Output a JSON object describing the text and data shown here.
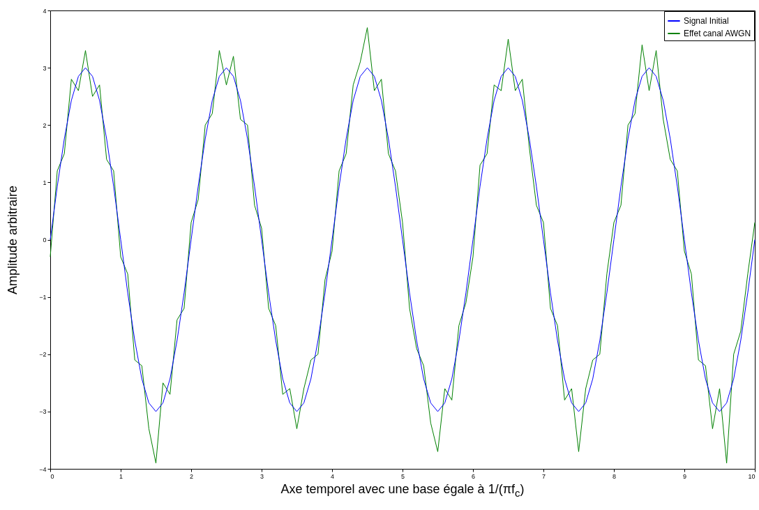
{
  "chart_data": {
    "type": "line",
    "xlabel": "Axe temporel avec une base égale à 1/(πf$_{c}$)",
    "ylabel": "Amplitude arbitraire",
    "x": [
      0,
      0.1,
      0.2,
      0.3,
      0.4,
      0.5,
      0.6,
      0.7,
      0.8,
      0.9,
      1,
      1.1,
      1.2,
      1.3,
      1.4,
      1.5,
      1.6,
      1.7,
      1.8,
      1.9,
      2,
      2.1,
      2.2,
      2.3,
      2.4,
      2.5,
      2.6,
      2.7,
      2.8,
      2.9,
      3,
      3.1,
      3.2,
      3.3,
      3.4,
      3.5,
      3.6,
      3.7,
      3.8,
      3.9,
      4,
      4.1,
      4.2,
      4.3,
      4.4,
      4.5,
      4.6,
      4.7,
      4.8,
      4.9,
      5,
      5.1,
      5.2,
      5.3,
      5.4,
      5.5,
      5.6,
      5.7,
      5.8,
      5.9,
      6,
      6.1,
      6.2,
      6.3,
      6.4,
      6.5,
      6.6,
      6.7,
      6.8,
      6.9,
      7,
      7.1,
      7.2,
      7.3,
      7.4,
      7.5,
      7.6,
      7.7,
      7.8,
      7.9,
      8,
      8.1,
      8.2,
      8.3,
      8.4,
      8.5,
      8.6,
      8.7,
      8.8,
      8.9,
      9,
      9.1,
      9.2,
      9.3,
      9.4,
      9.5,
      9.6,
      9.7,
      9.8,
      9.9,
      10
    ],
    "series": [
      {
        "name": "Effet canal AWGN",
        "color": "#008000",
        "values": [
          -0.3,
          1.2,
          1.5,
          2.8,
          2.6,
          3.3,
          2.5,
          2.7,
          1.4,
          1.2,
          -0.3,
          -0.6,
          -2.1,
          -2.2,
          -3.3,
          -3.9,
          -2.5,
          -2.7,
          -1.4,
          -1.2,
          0.3,
          0.7,
          2.0,
          2.2,
          3.3,
          2.7,
          3.2,
          2.1,
          2.0,
          0.6,
          0.2,
          -1.2,
          -1.5,
          -2.7,
          -2.6,
          -3.3,
          -2.6,
          -2.1,
          -2.0,
          -0.7,
          -0.2,
          1.2,
          1.5,
          2.7,
          3.1,
          3.7,
          2.6,
          2.8,
          1.5,
          1.2,
          0.3,
          -1.2,
          -1.9,
          -2.2,
          -3.2,
          -3.7,
          -2.6,
          -2.8,
          -1.5,
          -1.1,
          -0.3,
          1.3,
          1.5,
          2.7,
          2.6,
          3.5,
          2.6,
          2.8,
          1.6,
          0.6,
          0.3,
          -1.2,
          -1.5,
          -2.8,
          -2.6,
          -3.7,
          -2.6,
          -2.1,
          -2.0,
          -0.6,
          0.3,
          0.6,
          2.0,
          2.2,
          3.4,
          2.6,
          3.3,
          2.1,
          1.4,
          1.2,
          -0.2,
          -0.6,
          -2.1,
          -2.2,
          -3.3,
          -2.6,
          -3.9,
          -2.0,
          -1.6,
          -0.6,
          0.3
        ]
      },
      {
        "name": "Signal Initial",
        "color": "#0000ff",
        "values": [
          0,
          0.93,
          1.76,
          2.43,
          2.85,
          3,
          2.85,
          2.43,
          1.76,
          0.93,
          0,
          -0.93,
          -1.76,
          -2.43,
          -2.85,
          -3,
          -2.85,
          -2.43,
          -1.76,
          -0.93,
          0,
          0.93,
          1.76,
          2.43,
          2.85,
          3,
          2.85,
          2.43,
          1.76,
          0.93,
          0,
          -0.93,
          -1.76,
          -2.43,
          -2.85,
          -3,
          -2.85,
          -2.43,
          -1.76,
          -0.93,
          0,
          0.93,
          1.76,
          2.43,
          2.85,
          3,
          2.85,
          2.43,
          1.76,
          0.93,
          0,
          -0.93,
          -1.76,
          -2.43,
          -2.85,
          -3,
          -2.85,
          -2.43,
          -1.76,
          -0.93,
          0,
          0.93,
          1.76,
          2.43,
          2.85,
          3,
          2.85,
          2.43,
          1.76,
          0.93,
          0,
          -0.93,
          -1.76,
          -2.43,
          -2.85,
          -3,
          -2.85,
          -2.43,
          -1.76,
          -0.93,
          0,
          0.93,
          1.76,
          2.43,
          2.85,
          3,
          2.85,
          2.43,
          1.76,
          0.93,
          0,
          -0.93,
          -1.76,
          -2.43,
          -2.85,
          -3,
          -2.85,
          -2.43,
          -1.76,
          -0.93,
          0
        ]
      }
    ],
    "xlim": [
      0,
      10
    ],
    "xticks": [
      0,
      1,
      2,
      3,
      4,
      5,
      6,
      7,
      8,
      9,
      10
    ],
    "ylim": [
      -4,
      4
    ],
    "yticks": [
      -4,
      -3,
      -2,
      -1,
      0,
      1,
      2,
      3,
      4
    ],
    "grid": false,
    "legend": "top right",
    "marker": "none",
    "line_style": "solid"
  }
}
